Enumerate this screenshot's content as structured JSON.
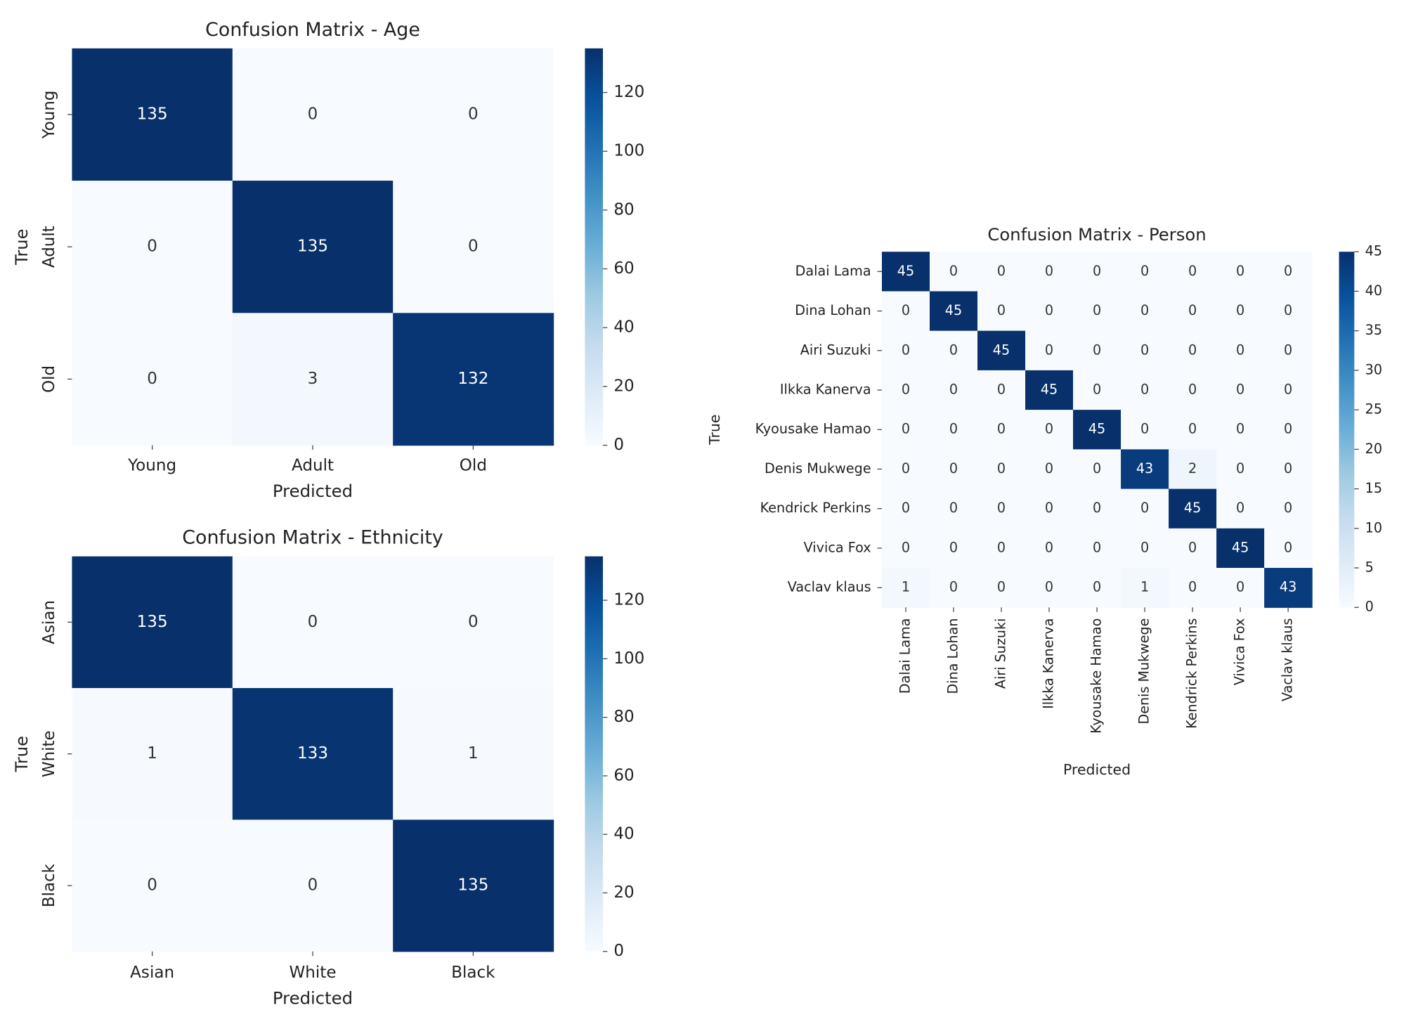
{
  "chart_data": [
    {
      "type": "heatmap",
      "title": "Confusion Matrix - Age",
      "x_label": "Predicted",
      "y_label": "True",
      "categories": [
        "Young",
        "Adult",
        "Old"
      ],
      "values": [
        [
          135,
          0,
          0
        ],
        [
          0,
          135,
          0
        ],
        [
          0,
          3,
          132
        ]
      ],
      "colormap": "Blues",
      "zlim": [
        0,
        135
      ],
      "zticks": [
        0,
        20,
        40,
        60,
        80,
        100,
        120
      ]
    },
    {
      "type": "heatmap",
      "title": "Confusion Matrix - Ethnicity",
      "x_label": "Predicted",
      "y_label": "True",
      "categories": [
        "Asian",
        "White",
        "Black"
      ],
      "values": [
        [
          135,
          0,
          0
        ],
        [
          1,
          133,
          1
        ],
        [
          0,
          0,
          135
        ]
      ],
      "colormap": "Blues",
      "zlim": [
        0,
        135
      ],
      "zticks": [
        0,
        20,
        40,
        60,
        80,
        100,
        120
      ]
    },
    {
      "type": "heatmap",
      "title": "Confusion Matrix - Person",
      "x_label": "Predicted",
      "y_label": "True",
      "categories": [
        "Dalai Lama",
        "Dina Lohan",
        "Airi Suzuki",
        "Ilkka Kanerva",
        "Kyousake Hamao",
        "Denis Mukwege",
        "Kendrick Perkins",
        "Vivica Fox",
        "Vaclav klaus"
      ],
      "values": [
        [
          45,
          0,
          0,
          0,
          0,
          0,
          0,
          0,
          0
        ],
        [
          0,
          45,
          0,
          0,
          0,
          0,
          0,
          0,
          0
        ],
        [
          0,
          0,
          45,
          0,
          0,
          0,
          0,
          0,
          0
        ],
        [
          0,
          0,
          0,
          45,
          0,
          0,
          0,
          0,
          0
        ],
        [
          0,
          0,
          0,
          0,
          45,
          0,
          0,
          0,
          0
        ],
        [
          0,
          0,
          0,
          0,
          0,
          43,
          2,
          0,
          0
        ],
        [
          0,
          0,
          0,
          0,
          0,
          0,
          45,
          0,
          0
        ],
        [
          0,
          0,
          0,
          0,
          0,
          0,
          0,
          45,
          0
        ],
        [
          1,
          0,
          0,
          0,
          0,
          1,
          0,
          0,
          43
        ]
      ],
      "colormap": "Blues",
      "zlim": [
        0,
        45
      ],
      "zticks": [
        0,
        5,
        10,
        15,
        20,
        25,
        30,
        35,
        40,
        45
      ]
    }
  ]
}
